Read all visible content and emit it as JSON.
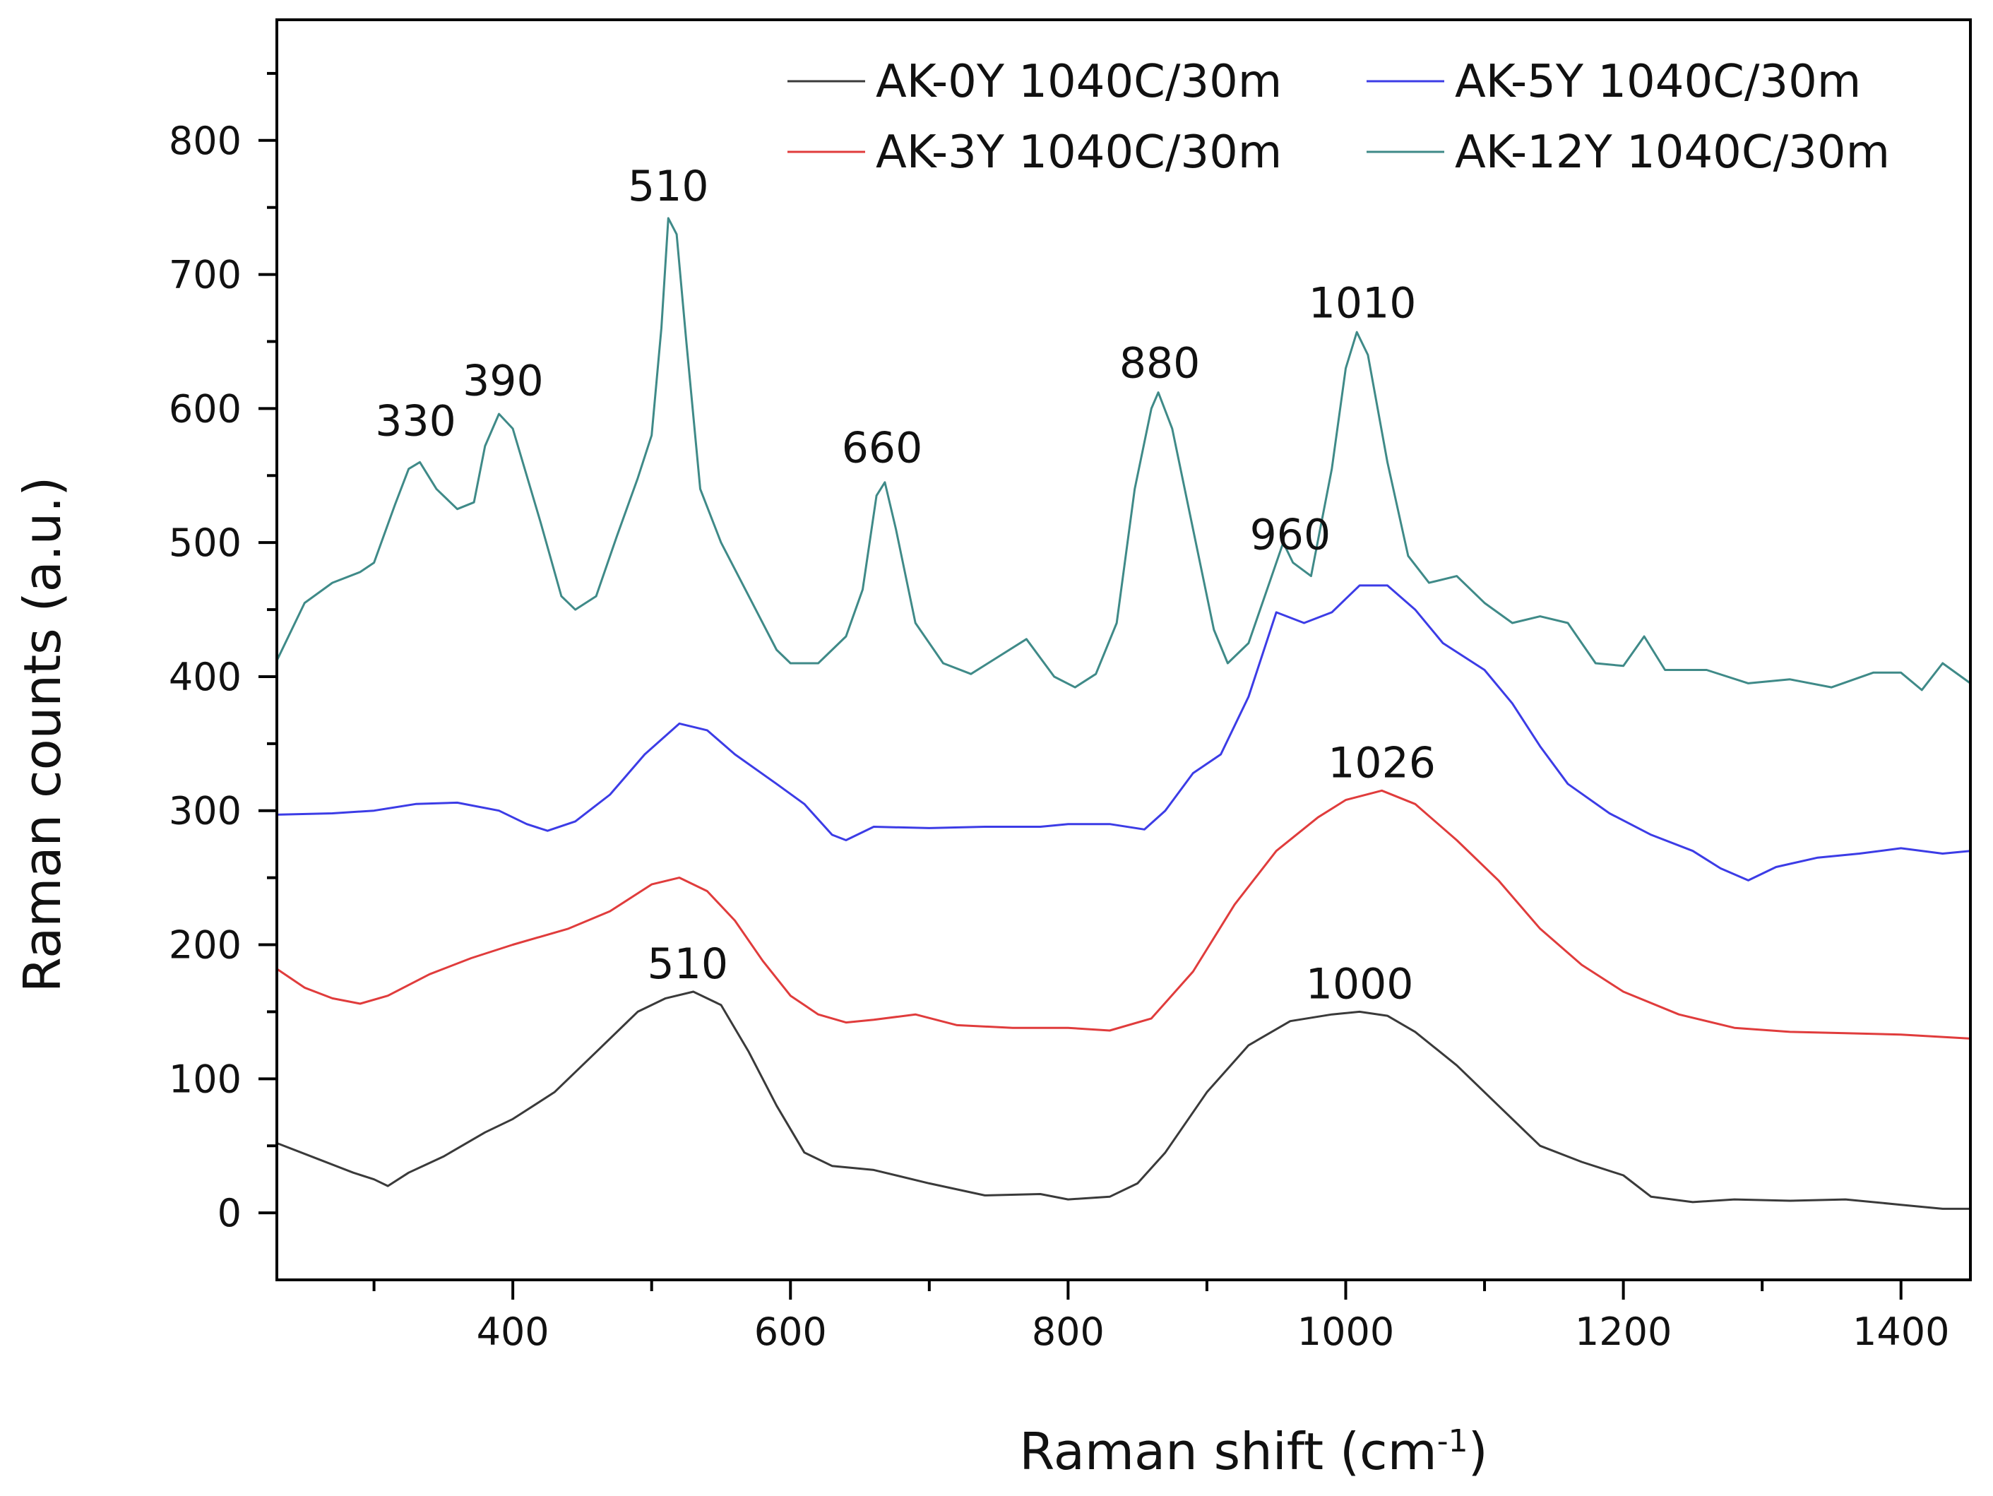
{
  "chart_data": {
    "type": "line",
    "xlabel": "Raman shift (cm",
    "xlabel_sup": "-1",
    "xlabel_end": ")",
    "ylabel": "Raman counts (a.u.)",
    "xlim": [
      230,
      1450
    ],
    "ylim": [
      -50,
      890
    ],
    "xticks": [
      400,
      600,
      800,
      1000,
      1200,
      1400
    ],
    "yticks": [
      0,
      100,
      200,
      300,
      400,
      500,
      600,
      700,
      800
    ],
    "series": [
      {
        "name": "AK-0Y 1040C/30m",
        "color": "#3a3a3a",
        "points": [
          [
            230,
            52
          ],
          [
            260,
            40
          ],
          [
            285,
            30
          ],
          [
            300,
            25
          ],
          [
            310,
            20
          ],
          [
            325,
            30
          ],
          [
            350,
            42
          ],
          [
            380,
            60
          ],
          [
            400,
            70
          ],
          [
            430,
            90
          ],
          [
            460,
            120
          ],
          [
            490,
            150
          ],
          [
            510,
            160
          ],
          [
            530,
            165
          ],
          [
            550,
            155
          ],
          [
            570,
            120
          ],
          [
            590,
            80
          ],
          [
            610,
            45
          ],
          [
            630,
            35
          ],
          [
            660,
            32
          ],
          [
            700,
            22
          ],
          [
            740,
            13
          ],
          [
            780,
            14
          ],
          [
            800,
            10
          ],
          [
            830,
            12
          ],
          [
            850,
            22
          ],
          [
            870,
            45
          ],
          [
            900,
            90
          ],
          [
            930,
            125
          ],
          [
            960,
            143
          ],
          [
            990,
            148
          ],
          [
            1010,
            150
          ],
          [
            1030,
            147
          ],
          [
            1050,
            135
          ],
          [
            1080,
            110
          ],
          [
            1110,
            80
          ],
          [
            1140,
            50
          ],
          [
            1170,
            38
          ],
          [
            1200,
            28
          ],
          [
            1220,
            12
          ],
          [
            1250,
            8
          ],
          [
            1280,
            10
          ],
          [
            1320,
            9
          ],
          [
            1360,
            10
          ],
          [
            1400,
            6
          ],
          [
            1430,
            3
          ],
          [
            1450,
            3
          ]
        ]
      },
      {
        "name": "AK-3Y 1040C/30m",
        "color": "#e03c3c",
        "points": [
          [
            230,
            182
          ],
          [
            250,
            168
          ],
          [
            270,
            160
          ],
          [
            290,
            156
          ],
          [
            310,
            162
          ],
          [
            340,
            178
          ],
          [
            370,
            190
          ],
          [
            400,
            200
          ],
          [
            440,
            212
          ],
          [
            470,
            225
          ],
          [
            500,
            245
          ],
          [
            520,
            250
          ],
          [
            540,
            240
          ],
          [
            560,
            218
          ],
          [
            580,
            188
          ],
          [
            600,
            162
          ],
          [
            620,
            148
          ],
          [
            640,
            142
          ],
          [
            660,
            144
          ],
          [
            690,
            148
          ],
          [
            720,
            140
          ],
          [
            760,
            138
          ],
          [
            800,
            138
          ],
          [
            830,
            136
          ],
          [
            860,
            145
          ],
          [
            890,
            180
          ],
          [
            920,
            230
          ],
          [
            950,
            270
          ],
          [
            980,
            295
          ],
          [
            1000,
            308
          ],
          [
            1026,
            315
          ],
          [
            1050,
            305
          ],
          [
            1080,
            278
          ],
          [
            1110,
            248
          ],
          [
            1140,
            212
          ],
          [
            1170,
            185
          ],
          [
            1200,
            165
          ],
          [
            1240,
            148
          ],
          [
            1280,
            138
          ],
          [
            1320,
            135
          ],
          [
            1360,
            134
          ],
          [
            1400,
            133
          ],
          [
            1450,
            130
          ]
        ]
      },
      {
        "name": "AK-5Y 1040C/30m",
        "color": "#3c3ce6",
        "points": [
          [
            230,
            297
          ],
          [
            270,
            298
          ],
          [
            300,
            300
          ],
          [
            330,
            305
          ],
          [
            360,
            306
          ],
          [
            390,
            300
          ],
          [
            410,
            290
          ],
          [
            425,
            285
          ],
          [
            445,
            292
          ],
          [
            470,
            312
          ],
          [
            495,
            342
          ],
          [
            520,
            365
          ],
          [
            540,
            360
          ],
          [
            560,
            342
          ],
          [
            590,
            320
          ],
          [
            610,
            305
          ],
          [
            630,
            282
          ],
          [
            640,
            278
          ],
          [
            660,
            288
          ],
          [
            700,
            287
          ],
          [
            740,
            288
          ],
          [
            780,
            288
          ],
          [
            800,
            290
          ],
          [
            830,
            290
          ],
          [
            855,
            286
          ],
          [
            870,
            300
          ],
          [
            890,
            328
          ],
          [
            910,
            342
          ],
          [
            930,
            385
          ],
          [
            950,
            448
          ],
          [
            970,
            440
          ],
          [
            990,
            448
          ],
          [
            1010,
            468
          ],
          [
            1030,
            468
          ],
          [
            1050,
            450
          ],
          [
            1070,
            425
          ],
          [
            1100,
            405
          ],
          [
            1120,
            380
          ],
          [
            1140,
            348
          ],
          [
            1160,
            320
          ],
          [
            1190,
            298
          ],
          [
            1220,
            282
          ],
          [
            1250,
            270
          ],
          [
            1270,
            257
          ],
          [
            1290,
            248
          ],
          [
            1310,
            258
          ],
          [
            1340,
            265
          ],
          [
            1370,
            268
          ],
          [
            1400,
            272
          ],
          [
            1430,
            268
          ],
          [
            1450,
            270
          ]
        ]
      },
      {
        "name": "AK-12Y 1040C/30m",
        "color": "#3f8a88",
        "points": [
          [
            230,
            412
          ],
          [
            250,
            455
          ],
          [
            270,
            470
          ],
          [
            290,
            478
          ],
          [
            300,
            485
          ],
          [
            315,
            528
          ],
          [
            325,
            555
          ],
          [
            333,
            560
          ],
          [
            345,
            540
          ],
          [
            360,
            525
          ],
          [
            372,
            530
          ],
          [
            380,
            572
          ],
          [
            390,
            596
          ],
          [
            400,
            585
          ],
          [
            420,
            515
          ],
          [
            435,
            460
          ],
          [
            445,
            450
          ],
          [
            460,
            460
          ],
          [
            475,
            505
          ],
          [
            490,
            548
          ],
          [
            500,
            580
          ],
          [
            507,
            660
          ],
          [
            512,
            742
          ],
          [
            518,
            730
          ],
          [
            525,
            650
          ],
          [
            535,
            540
          ],
          [
            550,
            500
          ],
          [
            570,
            460
          ],
          [
            590,
            420
          ],
          [
            600,
            410
          ],
          [
            620,
            410
          ],
          [
            640,
            430
          ],
          [
            652,
            465
          ],
          [
            662,
            535
          ],
          [
            668,
            545
          ],
          [
            676,
            510
          ],
          [
            690,
            440
          ],
          [
            710,
            410
          ],
          [
            730,
            402
          ],
          [
            750,
            415
          ],
          [
            770,
            428
          ],
          [
            790,
            400
          ],
          [
            805,
            392
          ],
          [
            820,
            402
          ],
          [
            835,
            440
          ],
          [
            848,
            540
          ],
          [
            860,
            600
          ],
          [
            865,
            612
          ],
          [
            875,
            585
          ],
          [
            890,
            510
          ],
          [
            905,
            435
          ],
          [
            915,
            410
          ],
          [
            930,
            425
          ],
          [
            945,
            470
          ],
          [
            955,
            500
          ],
          [
            962,
            485
          ],
          [
            975,
            475
          ],
          [
            990,
            555
          ],
          [
            1000,
            630
          ],
          [
            1008,
            657
          ],
          [
            1016,
            640
          ],
          [
            1030,
            560
          ],
          [
            1045,
            490
          ],
          [
            1060,
            470
          ],
          [
            1080,
            475
          ],
          [
            1100,
            455
          ],
          [
            1120,
            440
          ],
          [
            1140,
            445
          ],
          [
            1160,
            440
          ],
          [
            1180,
            410
          ],
          [
            1200,
            408
          ],
          [
            1215,
            430
          ],
          [
            1230,
            405
          ],
          [
            1260,
            405
          ],
          [
            1290,
            395
          ],
          [
            1320,
            398
          ],
          [
            1350,
            392
          ],
          [
            1380,
            403
          ],
          [
            1400,
            403
          ],
          [
            1415,
            390
          ],
          [
            1430,
            410
          ],
          [
            1450,
            395
          ]
        ]
      }
    ],
    "annotations": [
      {
        "text": "330",
        "x": 330,
        "y": 580
      },
      {
        "text": "390",
        "x": 393,
        "y": 610
      },
      {
        "text": "510",
        "x": 512,
        "y": 755
      },
      {
        "text": "660",
        "x": 666,
        "y": 560
      },
      {
        "text": "880",
        "x": 866,
        "y": 623
      },
      {
        "text": "960",
        "x": 960,
        "y": 495
      },
      {
        "text": "1010",
        "x": 1012,
        "y": 668
      },
      {
        "text": "1026",
        "x": 1026,
        "y": 325
      },
      {
        "text": "510",
        "x": 526,
        "y": 175
      },
      {
        "text": "1000",
        "x": 1010,
        "y": 160
      }
    ],
    "legend": "top-right"
  }
}
